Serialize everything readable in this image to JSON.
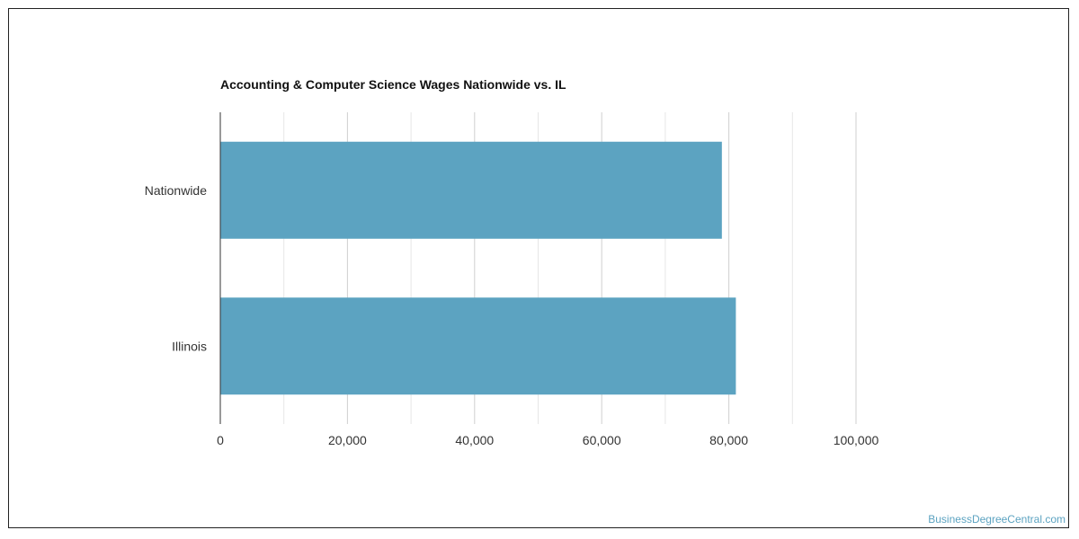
{
  "chart_data": {
    "type": "bar",
    "orientation": "horizontal",
    "title": "Accounting & Computer Science Wages Nationwide vs. IL",
    "xlabel": "",
    "ylabel": "",
    "categories": [
      "Nationwide",
      "Illinois"
    ],
    "series": [
      {
        "values": [
          78900,
          81100
        ]
      }
    ],
    "xlim": [
      0,
      100000
    ],
    "ticks": [
      0,
      20000,
      40000,
      60000,
      80000,
      100000
    ],
    "tick_labels": [
      "0",
      "20,000",
      "40,000",
      "60,000",
      "80,000",
      "100,000"
    ],
    "grid": true,
    "bar_color": "#5ca3c1"
  },
  "watermark": "BusinessDegreeCentral.com"
}
